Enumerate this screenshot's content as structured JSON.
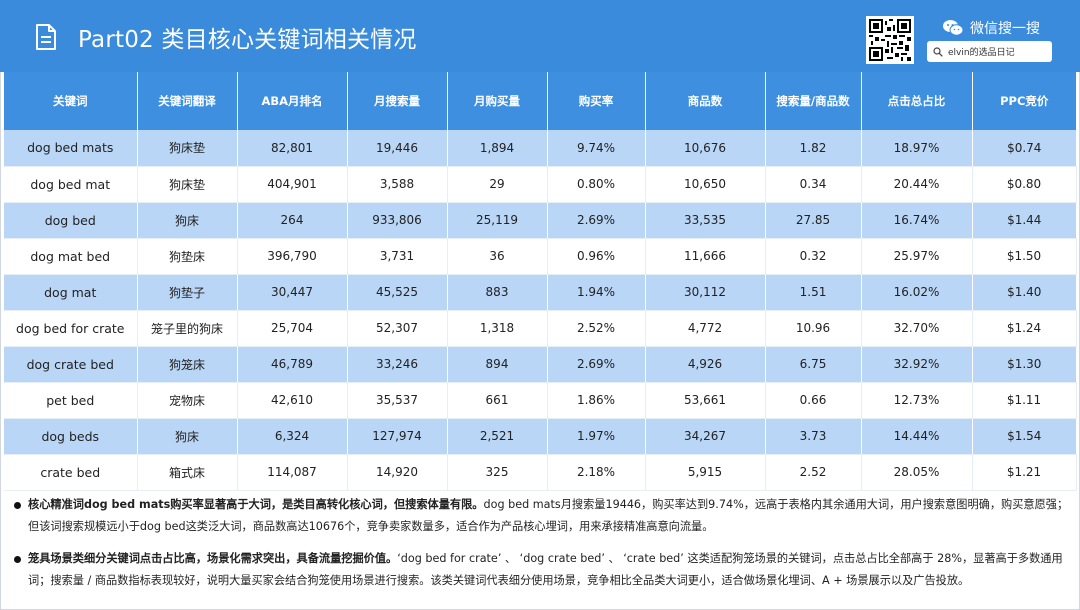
{
  "header": {
    "title": "Part02 类目核心关键词相关情况",
    "wechat_label": "微信搜一搜",
    "search_text": "elvin的选品日记",
    "colors": {
      "header_bg": "#3a8bdc",
      "table_header_bg": "#3f8fe0",
      "row_alt_bg": "#b9d6f6"
    }
  },
  "table": {
    "headers": [
      "关键词",
      "关键词翻译",
      "ABA月排名",
      "月搜索量",
      "月购买量",
      "购买率",
      "商品数",
      "搜索量/商品数",
      "点击总占比",
      "PPC竞价"
    ],
    "rows": [
      [
        "dog bed mats",
        "狗床垫",
        "82,801",
        "19,446",
        "1,894",
        "9.74%",
        "10,676",
        "1.82",
        "18.97%",
        "$0.74"
      ],
      [
        "dog bed mat",
        "狗床垫",
        "404,901",
        "3,588",
        "29",
        "0.80%",
        "10,650",
        "0.34",
        "20.44%",
        "$0.80"
      ],
      [
        "dog bed",
        "狗床",
        "264",
        "933,806",
        "25,119",
        "2.69%",
        "33,535",
        "27.85",
        "16.74%",
        "$1.44"
      ],
      [
        "dog mat bed",
        "狗垫床",
        "396,790",
        "3,731",
        "36",
        "0.96%",
        "11,666",
        "0.32",
        "25.97%",
        "$1.50"
      ],
      [
        "dog mat",
        "狗垫子",
        "30,447",
        "45,525",
        "883",
        "1.94%",
        "30,112",
        "1.51",
        "16.02%",
        "$1.40"
      ],
      [
        "dog bed for crate",
        "笼子里的狗床",
        "25,704",
        "52,307",
        "1,318",
        "2.52%",
        "4,772",
        "10.96",
        "32.70%",
        "$1.24"
      ],
      [
        "dog crate bed",
        "狗笼床",
        "46,789",
        "33,246",
        "894",
        "2.69%",
        "4,926",
        "6.75",
        "32.92%",
        "$1.30"
      ],
      [
        "pet bed",
        "宠物床",
        "42,610",
        "35,537",
        "661",
        "1.86%",
        "53,661",
        "0.66",
        "12.73%",
        "$1.11"
      ],
      [
        "dog beds",
        "狗床",
        "6,324",
        "127,974",
        "2,521",
        "1.97%",
        "34,267",
        "3.73",
        "14.44%",
        "$1.54"
      ],
      [
        "crate bed",
        "箱式床",
        "114,087",
        "14,920",
        "325",
        "2.18%",
        "5,915",
        "2.52",
        "28.05%",
        "$1.21"
      ]
    ]
  },
  "notes": [
    {
      "bold": "核心精准词dog bed mats购买率显著高于大词，是类目高转化核心词，但搜索体量有限。",
      "text": "dog bed mats月搜索量19446，购买率达到9.74%，远高于表格内其余通用大词，用户搜索意图明确，购买意愿强；但该词搜索规模远小于dog bed这类泛大词，商品数高达10676个，竞争卖家数量多，适合作为产品核心埋词，用来承接精准高意向流量。"
    },
    {
      "bold": "笼具场景类细分关键词点击占比高，场景化需求突出，具备流量挖掘价值。",
      "text": "‘dog bed for crate’ 、 ‘dog crate bed’ 、 ‘crate bed’ 这类适配狗笼场景的关键词，点击总占比全部高于 28%，显著高于多数通用词；搜索量 / 商品数指标表现较好，说明大量买家会结合狗笼使用场景进行搜索。该类关键词代表细分使用场景，竞争相比全品类大词更小，适合做场景化埋词、A + 场景展示以及广告投放。"
    }
  ]
}
